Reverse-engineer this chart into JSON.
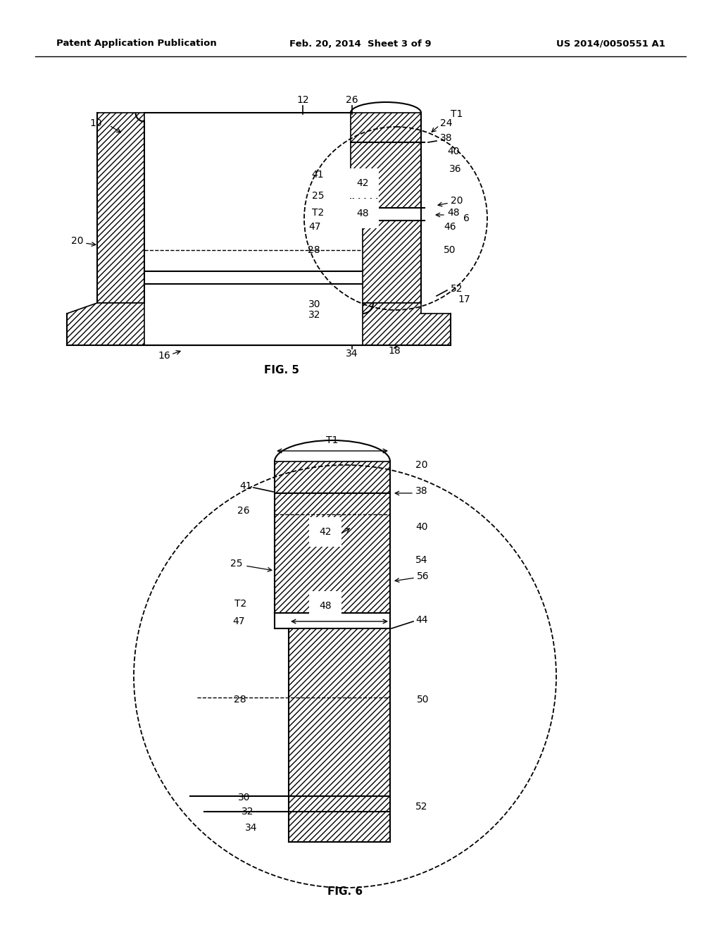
{
  "page_header_left": "Patent Application Publication",
  "page_header_center": "Feb. 20, 2014  Sheet 3 of 9",
  "page_header_right": "US 2014/0050551 A1",
  "fig5_caption": "FIG. 5",
  "fig6_caption": "FIG. 6",
  "bg_color": "#ffffff"
}
